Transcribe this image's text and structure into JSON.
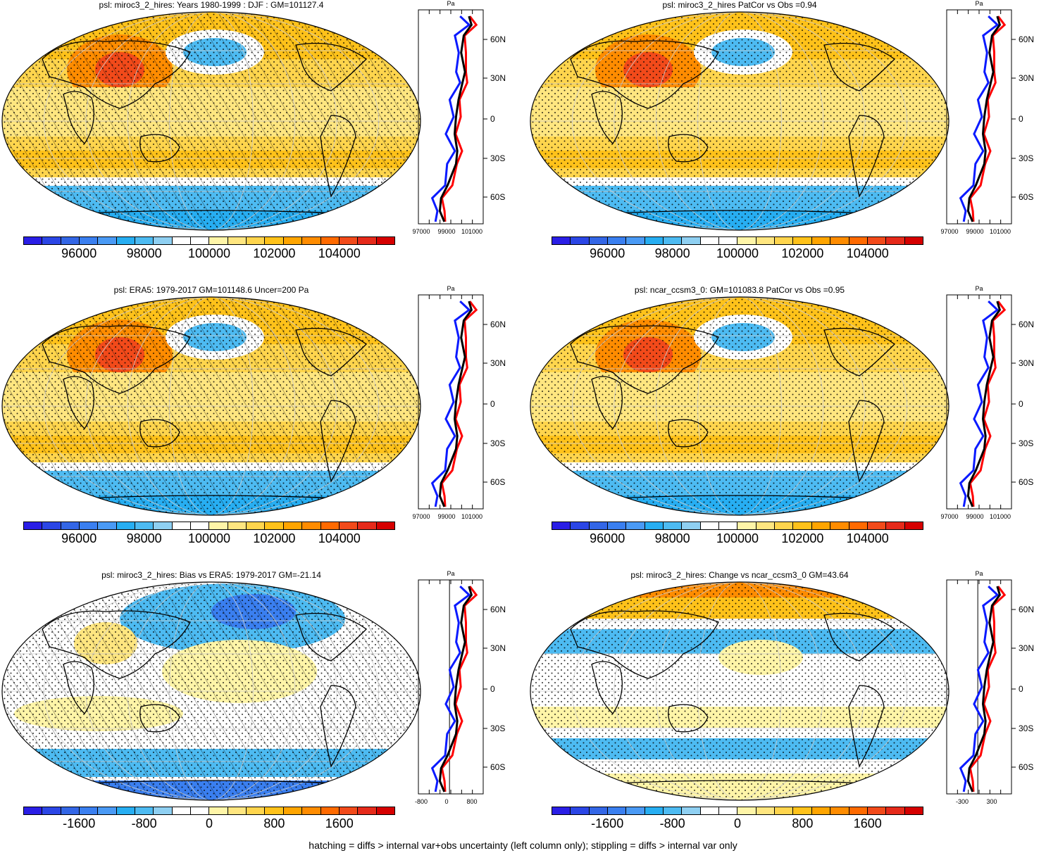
{
  "colors": {
    "scale": [
      "#2a1ee6",
      "#2b46e6",
      "#3366e6",
      "#3a7ff0",
      "#4a9af5",
      "#27aef2",
      "#4dbbf2",
      "#8fd0f2",
      "#ffffff",
      "#ffffff",
      "#fff5a8",
      "#ffe680",
      "#ffd54d",
      "#ffc21a",
      "#ffa500",
      "#ff8c00",
      "#ff6a00",
      "#f24a1a",
      "#e62a1a",
      "#d60000"
    ],
    "obs": "#0a1aff",
    "model": "#ff0000",
    "ref": "#000000",
    "ocean_warm": "#ffc94d",
    "ocean_cold": "#4dbbf2"
  },
  "footer": "hatching = diffs > internal var+obs uncertainty (left column only); stippling = diffs > internal var only",
  "panels": [
    {
      "title": "psl: miroc3_2_hires: Years 1980-1999 : DJF : GM=101127.4",
      "colorbar_labels": [
        "96000",
        "98000",
        "100000",
        "102000",
        "104000"
      ],
      "profile_unit": "Pa",
      "profile_lat_labels": [
        "60N",
        "30N",
        "0",
        "30S",
        "60S"
      ],
      "profile_x_labels": [
        "97000",
        "99000",
        "101000"
      ]
    },
    {
      "title": "psl: miroc3_2_hires PatCor vs Obs =0.94",
      "colorbar_labels": [
        "96000",
        "98000",
        "100000",
        "102000",
        "104000"
      ],
      "profile_unit": "Pa",
      "profile_lat_labels": [
        "60N",
        "30N",
        "0",
        "30S",
        "60S"
      ],
      "profile_x_labels": [
        "97000",
        "99000",
        "101000"
      ]
    },
    {
      "title": "psl: ERA5: 1979-2017 GM=101148.6 Uncer=200 Pa",
      "colorbar_labels": [
        "96000",
        "98000",
        "100000",
        "102000",
        "104000"
      ],
      "profile_unit": "Pa",
      "profile_lat_labels": [
        "60N",
        "30N",
        "0",
        "30S",
        "60S"
      ],
      "profile_x_labels": [
        "97000",
        "99000",
        "101000"
      ]
    },
    {
      "title": "psl: ncar_ccsm3_0: GM=101083.8 PatCor vs Obs =0.95",
      "colorbar_labels": [
        "96000",
        "98000",
        "100000",
        "102000",
        "104000"
      ],
      "profile_unit": "Pa",
      "profile_lat_labels": [
        "60N",
        "30N",
        "0",
        "30S",
        "60S"
      ],
      "profile_x_labels": [
        "97000",
        "99000",
        "101000"
      ]
    },
    {
      "title": "psl: miroc3_2_hires: Bias vs ERA5: 1979-2017 GM=-21.14",
      "colorbar_labels": [
        "-1600",
        "-800",
        "0",
        "800",
        "1600"
      ],
      "profile_unit": "Pa",
      "profile_lat_labels": [
        "60N",
        "30N",
        "0",
        "30S",
        "60S"
      ],
      "profile_x_labels": [
        "-800",
        "0",
        "800"
      ]
    },
    {
      "title": "psl: miroc3_2_hires: Change vs ncar_ccsm3_0 GM=43.64",
      "colorbar_labels": [
        "-1600",
        "-800",
        "0",
        "800",
        "1600"
      ],
      "profile_unit": "Pa",
      "profile_lat_labels": [
        "60N",
        "30N",
        "0",
        "30S",
        "60S"
      ],
      "profile_x_labels": [
        "-300",
        "300"
      ]
    }
  ]
}
